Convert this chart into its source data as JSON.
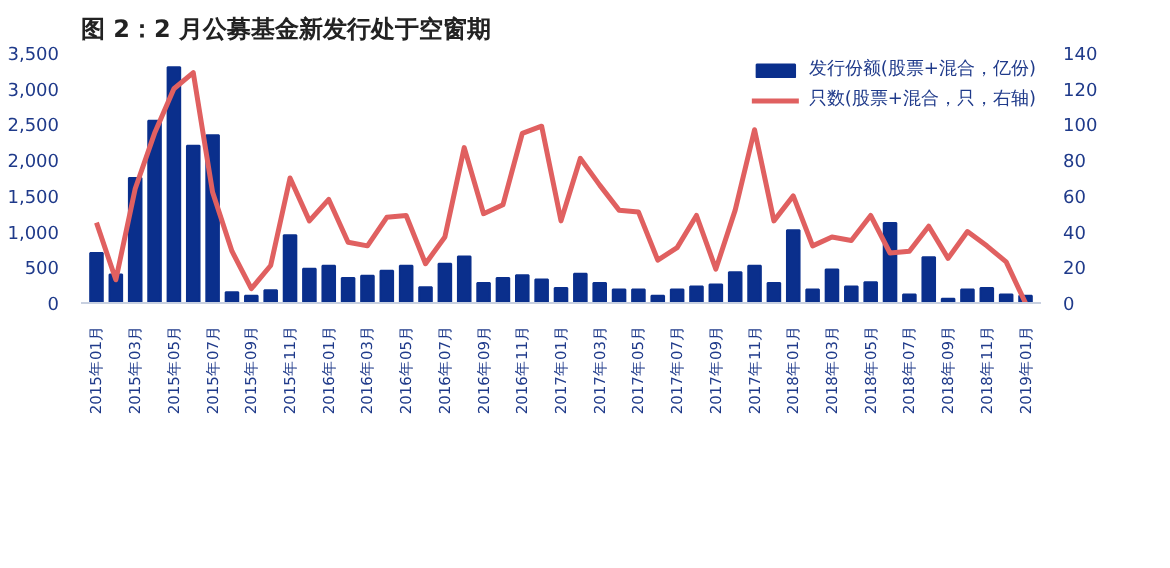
{
  "chart_data": {
    "type": "bar",
    "title": "图 2：2 月公募基金新发行处于空窗期",
    "categories": [
      "2015年01月",
      null,
      "2015年03月",
      null,
      "2015年05月",
      null,
      "2015年07月",
      null,
      "2015年09月",
      null,
      "2015年11月",
      null,
      "2016年01月",
      null,
      "2016年03月",
      null,
      "2016年05月",
      null,
      "2016年07月",
      null,
      "2016年09月",
      null,
      "2016年11月",
      null,
      "2017年01月",
      null,
      "2017年03月",
      null,
      "2017年05月",
      null,
      "2017年07月",
      null,
      "2017年09月",
      null,
      "2017年11月",
      null,
      "2018年01月",
      null,
      "2018年03月",
      null,
      "2018年05月",
      null,
      "2018年07月",
      null,
      "2018年09月",
      null,
      "2018年11月",
      null,
      "2019年01月"
    ],
    "series": [
      {
        "name": "发行份额(股票+混合，亿份)",
        "color": "#0a2f8c",
        "values": [
          700,
          400,
          1750,
          2550,
          3300,
          2200,
          2350,
          150,
          100,
          180,
          950,
          480,
          520,
          350,
          380,
          450,
          520,
          220,
          550,
          650,
          280,
          350,
          390,
          330,
          210,
          410,
          280,
          190,
          190,
          100,
          190,
          230,
          260,
          430,
          520,
          280,
          1020,
          190,
          470,
          230,
          290,
          1120,
          120,
          640,
          60,
          190,
          210,
          120,
          100
        ]
      },
      {
        "name": "只数(股票+混合，只，右轴)",
        "type": "line",
        "axis": "y2",
        "color": "#e06060",
        "values": [
          45,
          13,
          64,
          95,
          120,
          129,
          62,
          29,
          8,
          21,
          70,
          46,
          58,
          34,
          32,
          48,
          49,
          22,
          37,
          87,
          50,
          55,
          95,
          99,
          46,
          81,
          66,
          52,
          51,
          24,
          31,
          49,
          19,
          52,
          97,
          46,
          60,
          32,
          37,
          35,
          49,
          28,
          29,
          43,
          25,
          40,
          32,
          23,
          0
        ]
      }
    ],
    "ylim": [
      0,
      3500
    ],
    "yticks": [
      0,
      {
        "value": 500,
        "label": "500"
      },
      {
        "value": 1000,
        "label": "1,000"
      },
      {
        "value": 1500,
        "label": "1,500"
      },
      {
        "value": 2000,
        "label": "2,000"
      },
      {
        "value": 2500,
        "label": "2,500"
      },
      {
        "value": 3000,
        "label": "3,000"
      },
      {
        "value": 3500,
        "label": "3,500"
      }
    ],
    "y2lim": [
      0,
      140
    ],
    "y2ticks": [
      0,
      20,
      40,
      60,
      80,
      100,
      120,
      140
    ],
    "grid": false,
    "legend": "top right",
    "marker": "none",
    "line_style": "solid"
  }
}
